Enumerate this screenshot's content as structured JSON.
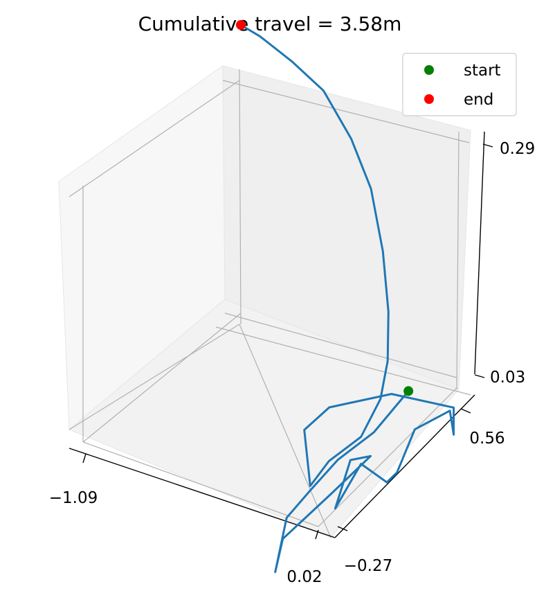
{
  "chart_data": {
    "type": "line3d",
    "title": "Cumulative travel = 3.58m",
    "x_ticks": [
      "−1.09",
      "0.02"
    ],
    "y_ticks": [
      "−0.27",
      "0.56"
    ],
    "z_ticks": [
      "0.03",
      "0.29"
    ],
    "grid": true,
    "legend_position": "top-right",
    "legend": [
      {
        "label": "start",
        "color": "#008000"
      },
      {
        "label": "end",
        "color": "#ff0000"
      }
    ],
    "colors": {
      "trajectory": "#1f77b4",
      "start": "#008000",
      "end": "#ff0000"
    },
    "start_point": {
      "x": -0.12,
      "y": 0.36,
      "z": 0.06
    },
    "end_point": {
      "x": -1.09,
      "y": 0.56,
      "z": 0.35
    },
    "trajectory": [
      [
        -0.12,
        0.36,
        0.06
      ],
      [
        -0.14,
        0.2,
        0.04
      ],
      [
        -0.22,
        0.1,
        0.02
      ],
      [
        -0.26,
        0.0,
        0.0
      ],
      [
        -0.3,
        -0.08,
        -0.02
      ],
      [
        -0.3,
        -0.14,
        -0.07
      ],
      [
        -0.3,
        -0.1,
        -0.04
      ],
      [
        -0.25,
        0.1,
        -0.02
      ],
      [
        -0.2,
        0.25,
        0.0
      ],
      [
        -0.25,
        0.2,
        0.0
      ],
      [
        -0.25,
        0.12,
        -0.04
      ],
      [
        -0.2,
        0.2,
        0.0
      ],
      [
        -0.15,
        0.28,
        -0.03
      ],
      [
        -0.12,
        0.3,
        -0.02
      ],
      [
        -0.09,
        0.36,
        0.02
      ],
      [
        -0.05,
        0.5,
        0.02
      ],
      [
        -0.05,
        0.52,
        -0.01
      ],
      [
        -0.05,
        0.52,
        0.02
      ],
      [
        -0.2,
        0.36,
        0.05
      ],
      [
        -0.35,
        0.2,
        0.05
      ],
      [
        -0.45,
        0.18,
        0.02
      ],
      [
        -0.42,
        0.16,
        0.0
      ],
      [
        -0.35,
        0.1,
        -0.02
      ],
      [
        -0.28,
        0.12,
        0.01
      ],
      [
        -0.2,
        0.2,
        0.03
      ],
      [
        -0.18,
        0.28,
        0.06
      ],
      [
        -0.2,
        0.34,
        0.09
      ],
      [
        -0.25,
        0.4,
        0.13
      ],
      [
        -0.33,
        0.46,
        0.18
      ],
      [
        -0.44,
        0.52,
        0.23
      ],
      [
        -0.56,
        0.55,
        0.27
      ],
      [
        -0.7,
        0.56,
        0.31
      ],
      [
        -0.85,
        0.56,
        0.33
      ],
      [
        -1.0,
        0.56,
        0.345
      ],
      [
        -1.09,
        0.56,
        0.35
      ]
    ]
  }
}
